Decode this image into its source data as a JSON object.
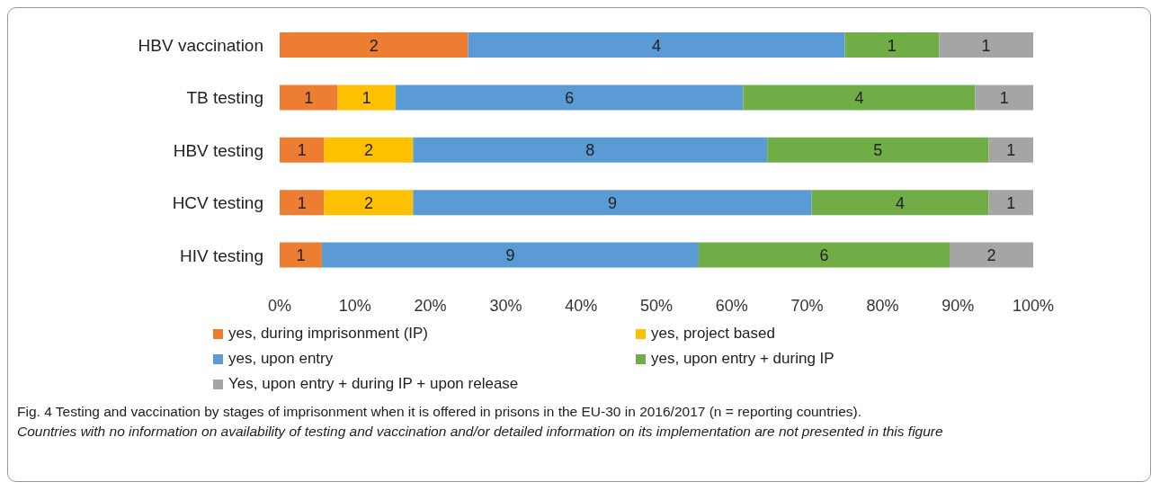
{
  "chart_data": {
    "type": "bar",
    "orientation": "horizontal",
    "stacked": true,
    "categories": [
      "HBV vaccination",
      "TB testing",
      "HBV testing",
      "HCV testing",
      "HIV testing"
    ],
    "series": [
      {
        "name": "yes, during imprisonment (IP)",
        "color": "#ed7d31",
        "values": [
          25.0,
          7.7,
          5.9,
          5.9,
          5.6
        ]
      },
      {
        "name": "yes, project based",
        "color": "#ffc000",
        "values": [
          null,
          7.7,
          11.8,
          11.8,
          null
        ]
      },
      {
        "name": "yes, upon entry",
        "color": "#5b9bd5",
        "values": [
          50.0,
          46.1,
          47.0,
          52.9,
          50.0
        ]
      },
      {
        "name": "yes, upon entry + during IP",
        "color": "#70ad47",
        "values": [
          12.5,
          30.8,
          29.4,
          23.5,
          33.3
        ]
      },
      {
        "name": "Yes, upon entry + during IP + upon release",
        "color": "#a5a5a5",
        "values": [
          12.5,
          7.7,
          5.9,
          5.9,
          11.1
        ]
      }
    ],
    "xlim": [
      0,
      100
    ],
    "xticks": [
      {
        "value": 0,
        "label": "0%"
      },
      {
        "value": 10,
        "label": "10%"
      },
      {
        "value": 20,
        "label": "20%"
      },
      {
        "value": 30,
        "label": "30%"
      },
      {
        "value": 40,
        "label": "40%"
      },
      {
        "value": 50,
        "label": "50%"
      },
      {
        "value": 60,
        "label": "60%"
      },
      {
        "value": 70,
        "label": "70%"
      },
      {
        "value": 80,
        "label": "80%"
      },
      {
        "value": 90,
        "label": "90%"
      },
      {
        "value": 100,
        "label": "100%"
      }
    ],
    "grid": false,
    "legend": "bottom",
    "annotations": [
      "2",
      "4",
      "1",
      "1",
      "1",
      "1",
      "6",
      "4",
      "1",
      "1",
      "2",
      "8",
      "5",
      "1",
      "1",
      "2",
      "9",
      "4",
      "1",
      "1",
      "9",
      "6",
      "2",
      "Fig. 4 Testing and vaccination by stages of imprisonment when it is offered in prisons in the EU-30 in 2016/2017 (n = reporting countries).",
      "Countries with no information on availability of testing and vaccination and/or detailed information on its implementation are not presented in this figure"
    ]
  }
}
